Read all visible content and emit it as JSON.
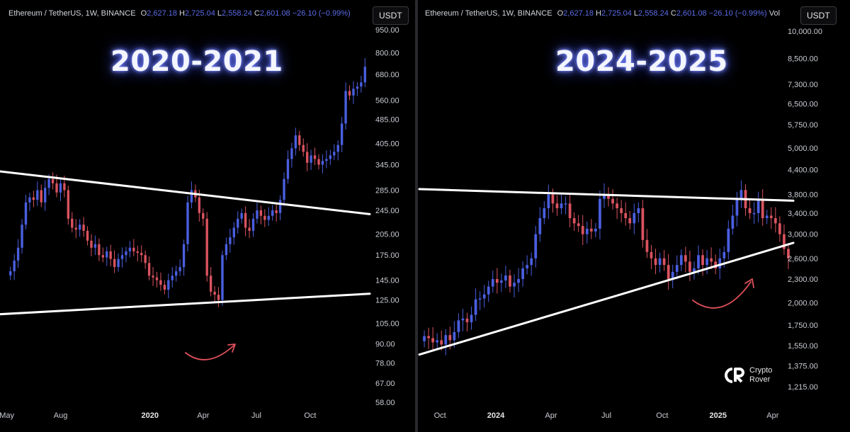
{
  "panels": [
    {
      "header": {
        "symbol": "Ethereum / TetherUS, 1W, BINANCE",
        "o_label": "O",
        "o": "2,627.18",
        "h_label": "H",
        "h": "2,725.04",
        "l_label": "L",
        "l": "2,558.24",
        "c_label": "C",
        "c": "2,601.08",
        "change": "−26.10 (−0.99%)",
        "extra": ""
      },
      "currency": "USDT",
      "period_label": "2020-2021"
    },
    {
      "header": {
        "symbol": "Ethereum / TetherUS, 1W, BINANCE",
        "o_label": "O",
        "o": "2,627.18",
        "h_label": "H",
        "h": "2,725.04",
        "l_label": "L",
        "l": "2,558.24",
        "c_label": "C",
        "c": "2,601.08",
        "change": "−26.10 (−0.99%)",
        "extra": "Vol"
      },
      "currency": "USDT",
      "period_label": "2024-2025"
    }
  ],
  "logo": {
    "line1": "Crypto",
    "line2": "Rover"
  },
  "colors": {
    "up": "#4a5fe0",
    "down": "#d9535f",
    "trendline": "#ffffff",
    "arrow": "#e0505a",
    "background": "#000000"
  },
  "chart_data": [
    {
      "type": "candlestick",
      "title": "2020-2021",
      "y_scale": "log",
      "ylim": [
        52,
        1000
      ],
      "y_ticks": [
        950,
        800,
        680,
        560,
        485,
        405,
        345,
        285,
        245,
        205,
        175,
        145,
        125,
        105,
        90,
        78,
        67,
        58
      ],
      "y_tick_labels": [
        "950.00",
        "800.00",
        "680.00",
        "560.00",
        "485.00",
        "405.00",
        "345.00",
        "285.00",
        "245.00",
        "205.00",
        "175.00",
        "145.00",
        "125.00",
        "105.00",
        "90.00",
        "78.00",
        "67.00",
        "58.00"
      ],
      "x_start": "2019-04-29",
      "x_end": "2021-01-11",
      "x_ticks": [
        {
          "date": "2019-05-01",
          "label": "May",
          "bold": false
        },
        {
          "date": "2019-08-01",
          "label": "Aug",
          "bold": false
        },
        {
          "date": "2020-01-01",
          "label": "2020",
          "bold": true
        },
        {
          "date": "2020-04-01",
          "label": "Apr",
          "bold": false
        },
        {
          "date": "2020-07-01",
          "label": "Jul",
          "bold": false
        },
        {
          "date": "2020-10-01",
          "label": "Oct",
          "bold": false
        }
      ],
      "close": [
        155,
        168,
        185,
        220,
        260,
        270,
        265,
        285,
        260,
        290,
        310,
        300,
        280,
        300,
        285,
        230,
        215,
        212,
        220,
        210,
        195,
        185,
        190,
        175,
        172,
        180,
        170,
        160,
        170,
        175,
        180,
        185,
        180,
        178,
        175,
        165,
        150,
        148,
        145,
        140,
        135,
        145,
        150,
        155,
        160,
        190,
        260,
        285,
        270,
        240,
        230,
        150,
        133,
        130,
        125,
        175,
        190,
        200,
        215,
        230,
        240,
        215,
        210,
        230,
        245,
        235,
        228,
        235,
        245,
        240,
        265,
        310,
        360,
        390,
        430,
        400,
        380,
        350,
        370,
        360,
        345,
        355,
        360,
        370,
        380,
        400,
        470,
        600,
        580,
        610,
        620,
        640,
        720
      ],
      "series_summary": "weekly ETH/USDT candles, ~155 to ~720"
    },
    {
      "type": "candlestick",
      "title": "2024-2025",
      "y_scale": "log",
      "ylim": [
        1130,
        11000
      ],
      "y_ticks": [
        10000,
        8500,
        7300,
        6500,
        5750,
        5000,
        4400,
        3800,
        3400,
        3000,
        2600,
        2300,
        2000,
        1750,
        1550,
        1375,
        1215
      ],
      "y_tick_labels": [
        "10,000.00",
        "8,500.00",
        "7,300.00",
        "6,500.00",
        "5,750.00",
        "5,000.00",
        "4,400.00",
        "3,800.00",
        "3,400.00",
        "3,000.00",
        "2,600.00",
        "2,300.00",
        "2,000.00",
        "1,750.00",
        "1,550.00",
        "1,375.00",
        "1,215.00"
      ],
      "x_start": "2023-08-28",
      "x_end": "2025-05-05",
      "x_ticks": [
        {
          "date": "2023-10-01",
          "label": "Oct",
          "bold": false
        },
        {
          "date": "2024-01-01",
          "label": "2024",
          "bold": true
        },
        {
          "date": "2024-04-01",
          "label": "Apr",
          "bold": false
        },
        {
          "date": "2024-07-01",
          "label": "Jul",
          "bold": false
        },
        {
          "date": "2024-10-01",
          "label": "Oct",
          "bold": false
        },
        {
          "date": "2025-01-01",
          "label": "2025",
          "bold": true
        },
        {
          "date": "2025-04-01",
          "label": "Apr",
          "bold": false
        }
      ],
      "close": [
        1640,
        1620,
        1580,
        1600,
        1560,
        1650,
        1600,
        1680,
        1800,
        1820,
        1780,
        1860,
        2040,
        2050,
        2100,
        2200,
        2300,
        2250,
        2280,
        2350,
        2200,
        2250,
        2300,
        2450,
        2500,
        2600,
        3000,
        3300,
        3500,
        3800,
        3600,
        3500,
        3600,
        3600,
        3300,
        3200,
        3150,
        3000,
        3100,
        3050,
        3100,
        3700,
        3800,
        3700,
        3600,
        3500,
        3400,
        3300,
        3200,
        3400,
        3500,
        2900,
        2700,
        2600,
        2500,
        2600,
        2500,
        2300,
        2400,
        2500,
        2650,
        2550,
        2400,
        2450,
        2650,
        2500,
        2600,
        2550,
        2450,
        2600,
        2700,
        3100,
        3350,
        3700,
        3900,
        3500,
        3400,
        3400,
        3700,
        3300,
        3350,
        3300,
        3200,
        3000,
        2750,
        2600
      ],
      "series_summary": "weekly ETH/USDT candles, ~1,600 to ~2,600"
    }
  ]
}
